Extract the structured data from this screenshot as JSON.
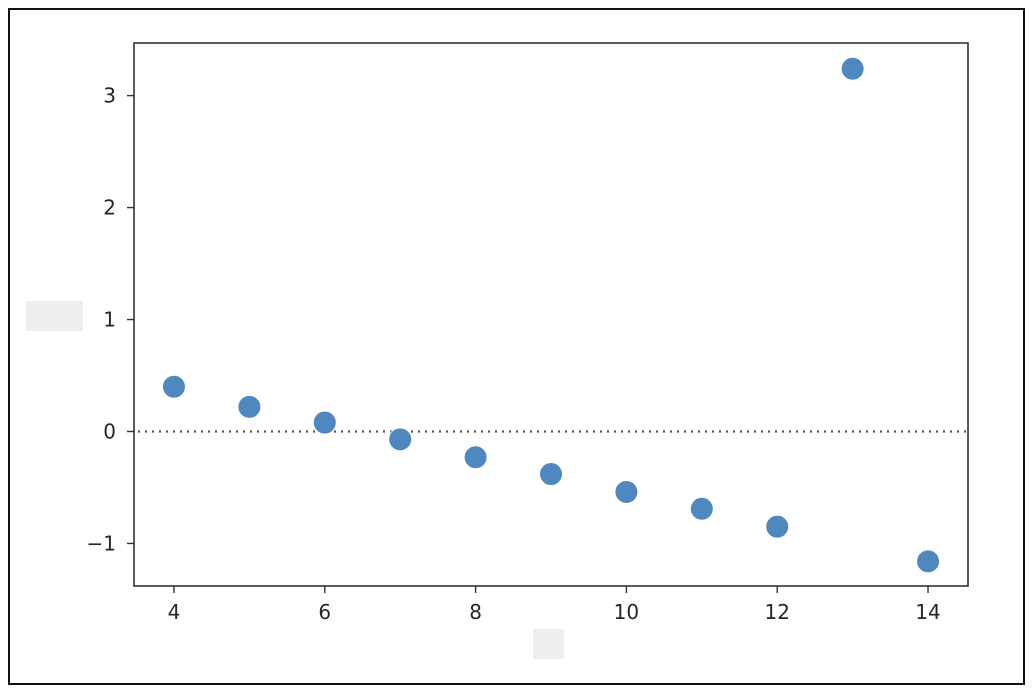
{
  "chart_data": {
    "type": "scatter",
    "title": "",
    "xlabel": "",
    "ylabel": "",
    "xlim": [
      3.47,
      14.53
    ],
    "ylim": [
      -1.38,
      3.47
    ],
    "xticks": [
      4,
      6,
      8,
      10,
      12,
      14
    ],
    "xtick_labels": [
      "4",
      "6",
      "8",
      "10",
      "12",
      "14"
    ],
    "yticks": [
      -1,
      0,
      1,
      2,
      3
    ],
    "ytick_labels": [
      "−1",
      "0",
      "1",
      "2",
      "3"
    ],
    "grid": false,
    "reference_line": {
      "y": 0,
      "style": "dotted"
    },
    "colors": {
      "marker": "#4f88bf",
      "reference_line": "#555555",
      "axes": "#333333"
    },
    "series": [
      {
        "x": [
          4,
          5,
          6,
          7,
          8,
          9,
          10,
          11,
          12,
          13,
          14
        ],
        "y": [
          0.4,
          0.22,
          0.08,
          -0.07,
          -0.23,
          -0.38,
          -0.54,
          -0.69,
          -0.85,
          3.24,
          -1.16
        ]
      }
    ]
  }
}
